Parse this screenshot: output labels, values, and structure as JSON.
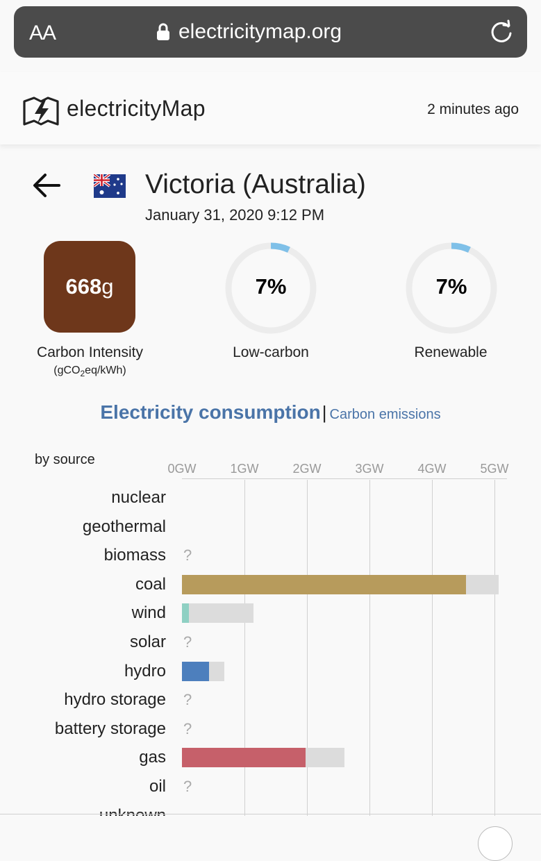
{
  "browser": {
    "text_size_button": "AA",
    "url": "electricitymap.org"
  },
  "header": {
    "brand": "electricityMap",
    "updated": "2 minutes ago"
  },
  "zone": {
    "title": "Victoria (Australia)",
    "datetime": "January 31, 2020 9:12 PM",
    "flag": "australia-flag"
  },
  "summary": {
    "carbon_intensity_value": "668",
    "carbon_intensity_unit": "g",
    "carbon_intensity_color": "#6e371b",
    "carbon_intensity_label": "Carbon Intensity",
    "carbon_intensity_unit_label_a": "(gCO",
    "carbon_intensity_unit_label_sub": "2",
    "carbon_intensity_unit_label_b": "eq/kWh)",
    "low_carbon_value": "7%",
    "low_carbon_fraction": 0.07,
    "low_carbon_label": "Low-carbon",
    "renewable_value": "7%",
    "renewable_fraction": 0.07,
    "renewable_label": "Renewable",
    "gauge_color": "#7fc0e8",
    "gauge_track_color": "#ececec"
  },
  "tabs": {
    "active": "Electricity consumption",
    "separator": "|",
    "other": "Carbon emissions"
  },
  "chart_data": {
    "type": "bar",
    "title": "by source",
    "xlabel": "",
    "ylabel": "",
    "xlim": [
      0,
      5.2
    ],
    "ticks": [
      "0GW",
      "1GW",
      "2GW",
      "3GW",
      "4GW",
      "5GW"
    ],
    "tick_values": [
      0,
      1,
      2,
      3,
      4,
      5
    ],
    "rows": [
      {
        "name": "nuclear",
        "production": null,
        "capacity": null,
        "unknown": false
      },
      {
        "name": "geothermal",
        "production": null,
        "capacity": null,
        "unknown": false
      },
      {
        "name": "biomass",
        "production": null,
        "capacity": null,
        "unknown": true
      },
      {
        "name": "coal",
        "production": 4.54,
        "capacity": 5.07,
        "unknown": false,
        "color": "#b79b5c"
      },
      {
        "name": "wind",
        "production": 0.11,
        "capacity": 1.14,
        "unknown": false,
        "color": "#8fd0c3"
      },
      {
        "name": "solar",
        "production": null,
        "capacity": null,
        "unknown": true
      },
      {
        "name": "hydro",
        "production": 0.43,
        "capacity": 0.68,
        "unknown": false,
        "color": "#4d7fbd"
      },
      {
        "name": "hydro storage",
        "production": null,
        "capacity": null,
        "unknown": true
      },
      {
        "name": "battery storage",
        "production": null,
        "capacity": null,
        "unknown": true
      },
      {
        "name": "gas",
        "production": 1.98,
        "capacity": 2.6,
        "unknown": false,
        "color": "#c6606a"
      },
      {
        "name": "oil",
        "production": null,
        "capacity": null,
        "unknown": true
      },
      {
        "name": "unknown",
        "production": null,
        "capacity": null,
        "unknown": false
      }
    ],
    "unknown_marker": "?",
    "capacity_color": "#dcdcdc"
  }
}
